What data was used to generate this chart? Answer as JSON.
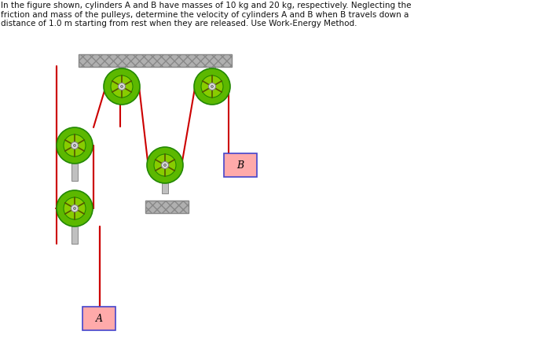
{
  "title_text": "In the figure shown, cylinders A and B have masses of 10 kg and 20 kg, respectively. Neglecting the\nfriction and mass of the pulleys, determine the velocity of cylinders A and B when B travels down a\ndistance of 1.0 m starting from rest when they are released. Use Work-Energy Method.",
  "bg_color": "#ffffff",
  "rope_color": "#cc0000",
  "pulley_outer_color": "#5cb800",
  "pulley_inner_color": "#c8c8c8",
  "pulley_hub_color": "#d0d0d0",
  "shaft_color": "#c0c0c0",
  "ceiling_color": "#b0b0b0",
  "ceiling_hatch": "xxx",
  "box_A_color": "#ffaaaa",
  "box_B_color": "#ffaaaa",
  "box_border_color": "#4444cc",
  "wall_color": "#b0b0b0",
  "wall_hatch": "xxx"
}
